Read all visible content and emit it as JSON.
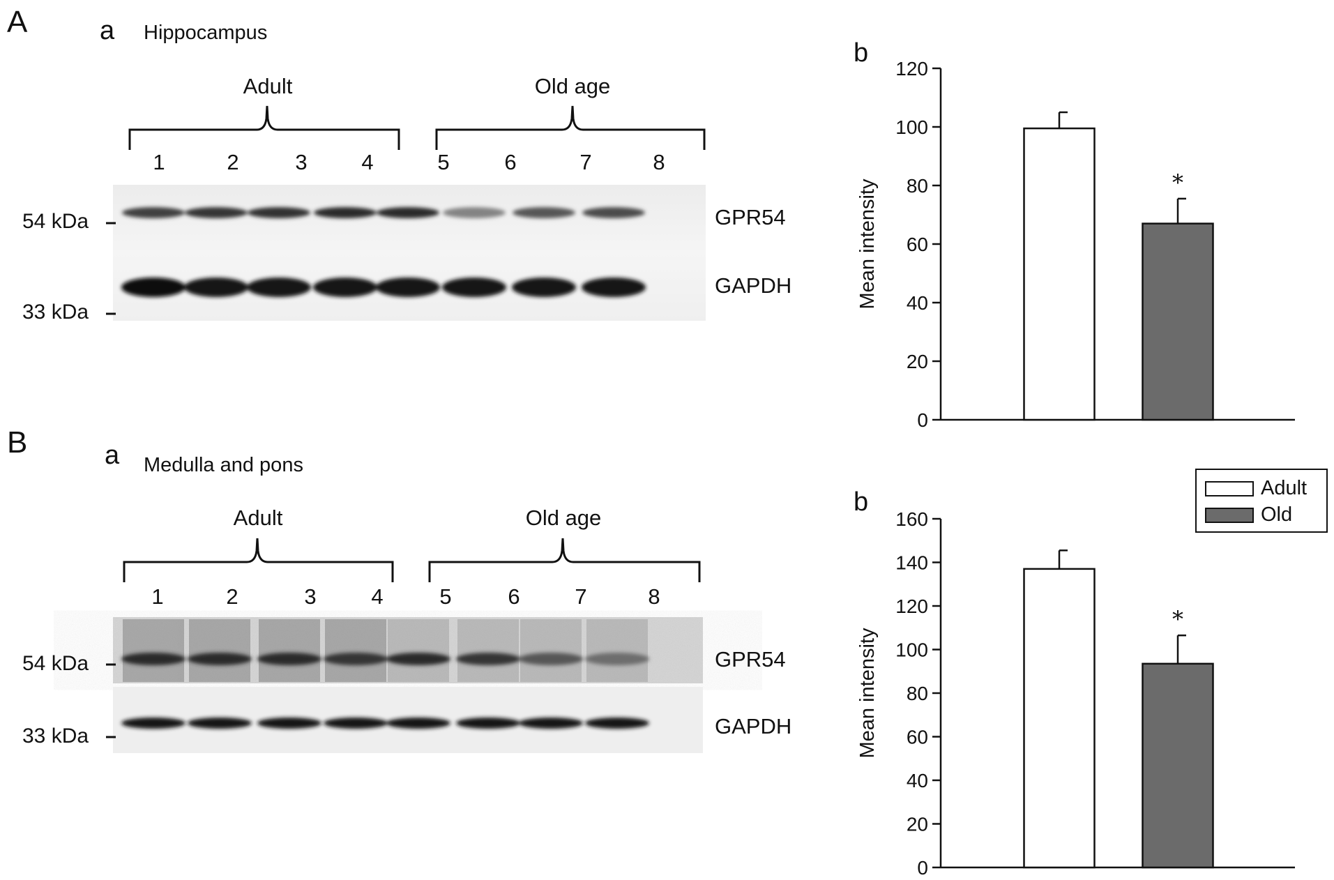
{
  "panels": [
    {
      "letter": "A",
      "blot": {
        "sub_letter": "a",
        "tissue": "Hippocampus",
        "groups": [
          "Adult",
          "Old age"
        ],
        "lanes": [
          "1",
          "2",
          "3",
          "4",
          "5",
          "6",
          "7",
          "8"
        ],
        "markers": [
          "54 kDa",
          "33 kDa"
        ],
        "proteins": [
          "GPR54",
          "GAPDH"
        ],
        "gpr54_band_intensity": [
          0.75,
          0.8,
          0.82,
          0.85,
          0.85,
          0.45,
          0.65,
          0.7
        ],
        "gapdh_band_intensity": [
          1,
          0.95,
          0.95,
          0.95,
          0.95,
          0.95,
          0.95,
          0.95
        ]
      },
      "chart_sub_letter": "b"
    },
    {
      "letter": "B",
      "blot": {
        "sub_letter": "a",
        "tissue": "Medulla and pons",
        "groups": [
          "Adult",
          "Old age"
        ],
        "lanes": [
          "1",
          "2",
          "3",
          "4",
          "5",
          "6",
          "7",
          "8"
        ],
        "markers": [
          "54 kDa",
          "33 kDa"
        ],
        "proteins": [
          "GPR54",
          "GAPDH"
        ],
        "gpr54_band_intensity": [
          0.85,
          0.85,
          0.85,
          0.8,
          0.85,
          0.8,
          0.65,
          0.55
        ],
        "gapdh_band_intensity": [
          0.95,
          0.95,
          0.95,
          0.95,
          0.95,
          0.95,
          0.95,
          0.95
        ]
      },
      "chart_sub_letter": "b"
    }
  ],
  "legend": {
    "items": [
      {
        "label": "Adult",
        "color": "#ffffff"
      },
      {
        "label": "Old",
        "color": "#6b6b6b"
      }
    ]
  },
  "chart_data": [
    {
      "type": "bar",
      "categories": [
        "Adult",
        "Old"
      ],
      "values": [
        99.5,
        67
      ],
      "errors": [
        5.5,
        8.5
      ],
      "significance": [
        "",
        "*"
      ],
      "colors": [
        "#ffffff",
        "#6b6b6b"
      ],
      "ylabel": "Mean intensity",
      "xlabel": "",
      "ylim": [
        0,
        120
      ],
      "yticks": [
        0,
        20,
        40,
        60,
        80,
        100,
        120
      ]
    },
    {
      "type": "bar",
      "categories": [
        "Adult",
        "Old"
      ],
      "values": [
        137,
        93.5
      ],
      "errors": [
        8.5,
        13
      ],
      "significance": [
        "",
        "*"
      ],
      "colors": [
        "#ffffff",
        "#6b6b6b"
      ],
      "ylabel": "Mean intensity",
      "xlabel": "",
      "ylim": [
        0,
        160
      ],
      "yticks": [
        0,
        20,
        40,
        60,
        80,
        100,
        120,
        140,
        160
      ]
    }
  ]
}
